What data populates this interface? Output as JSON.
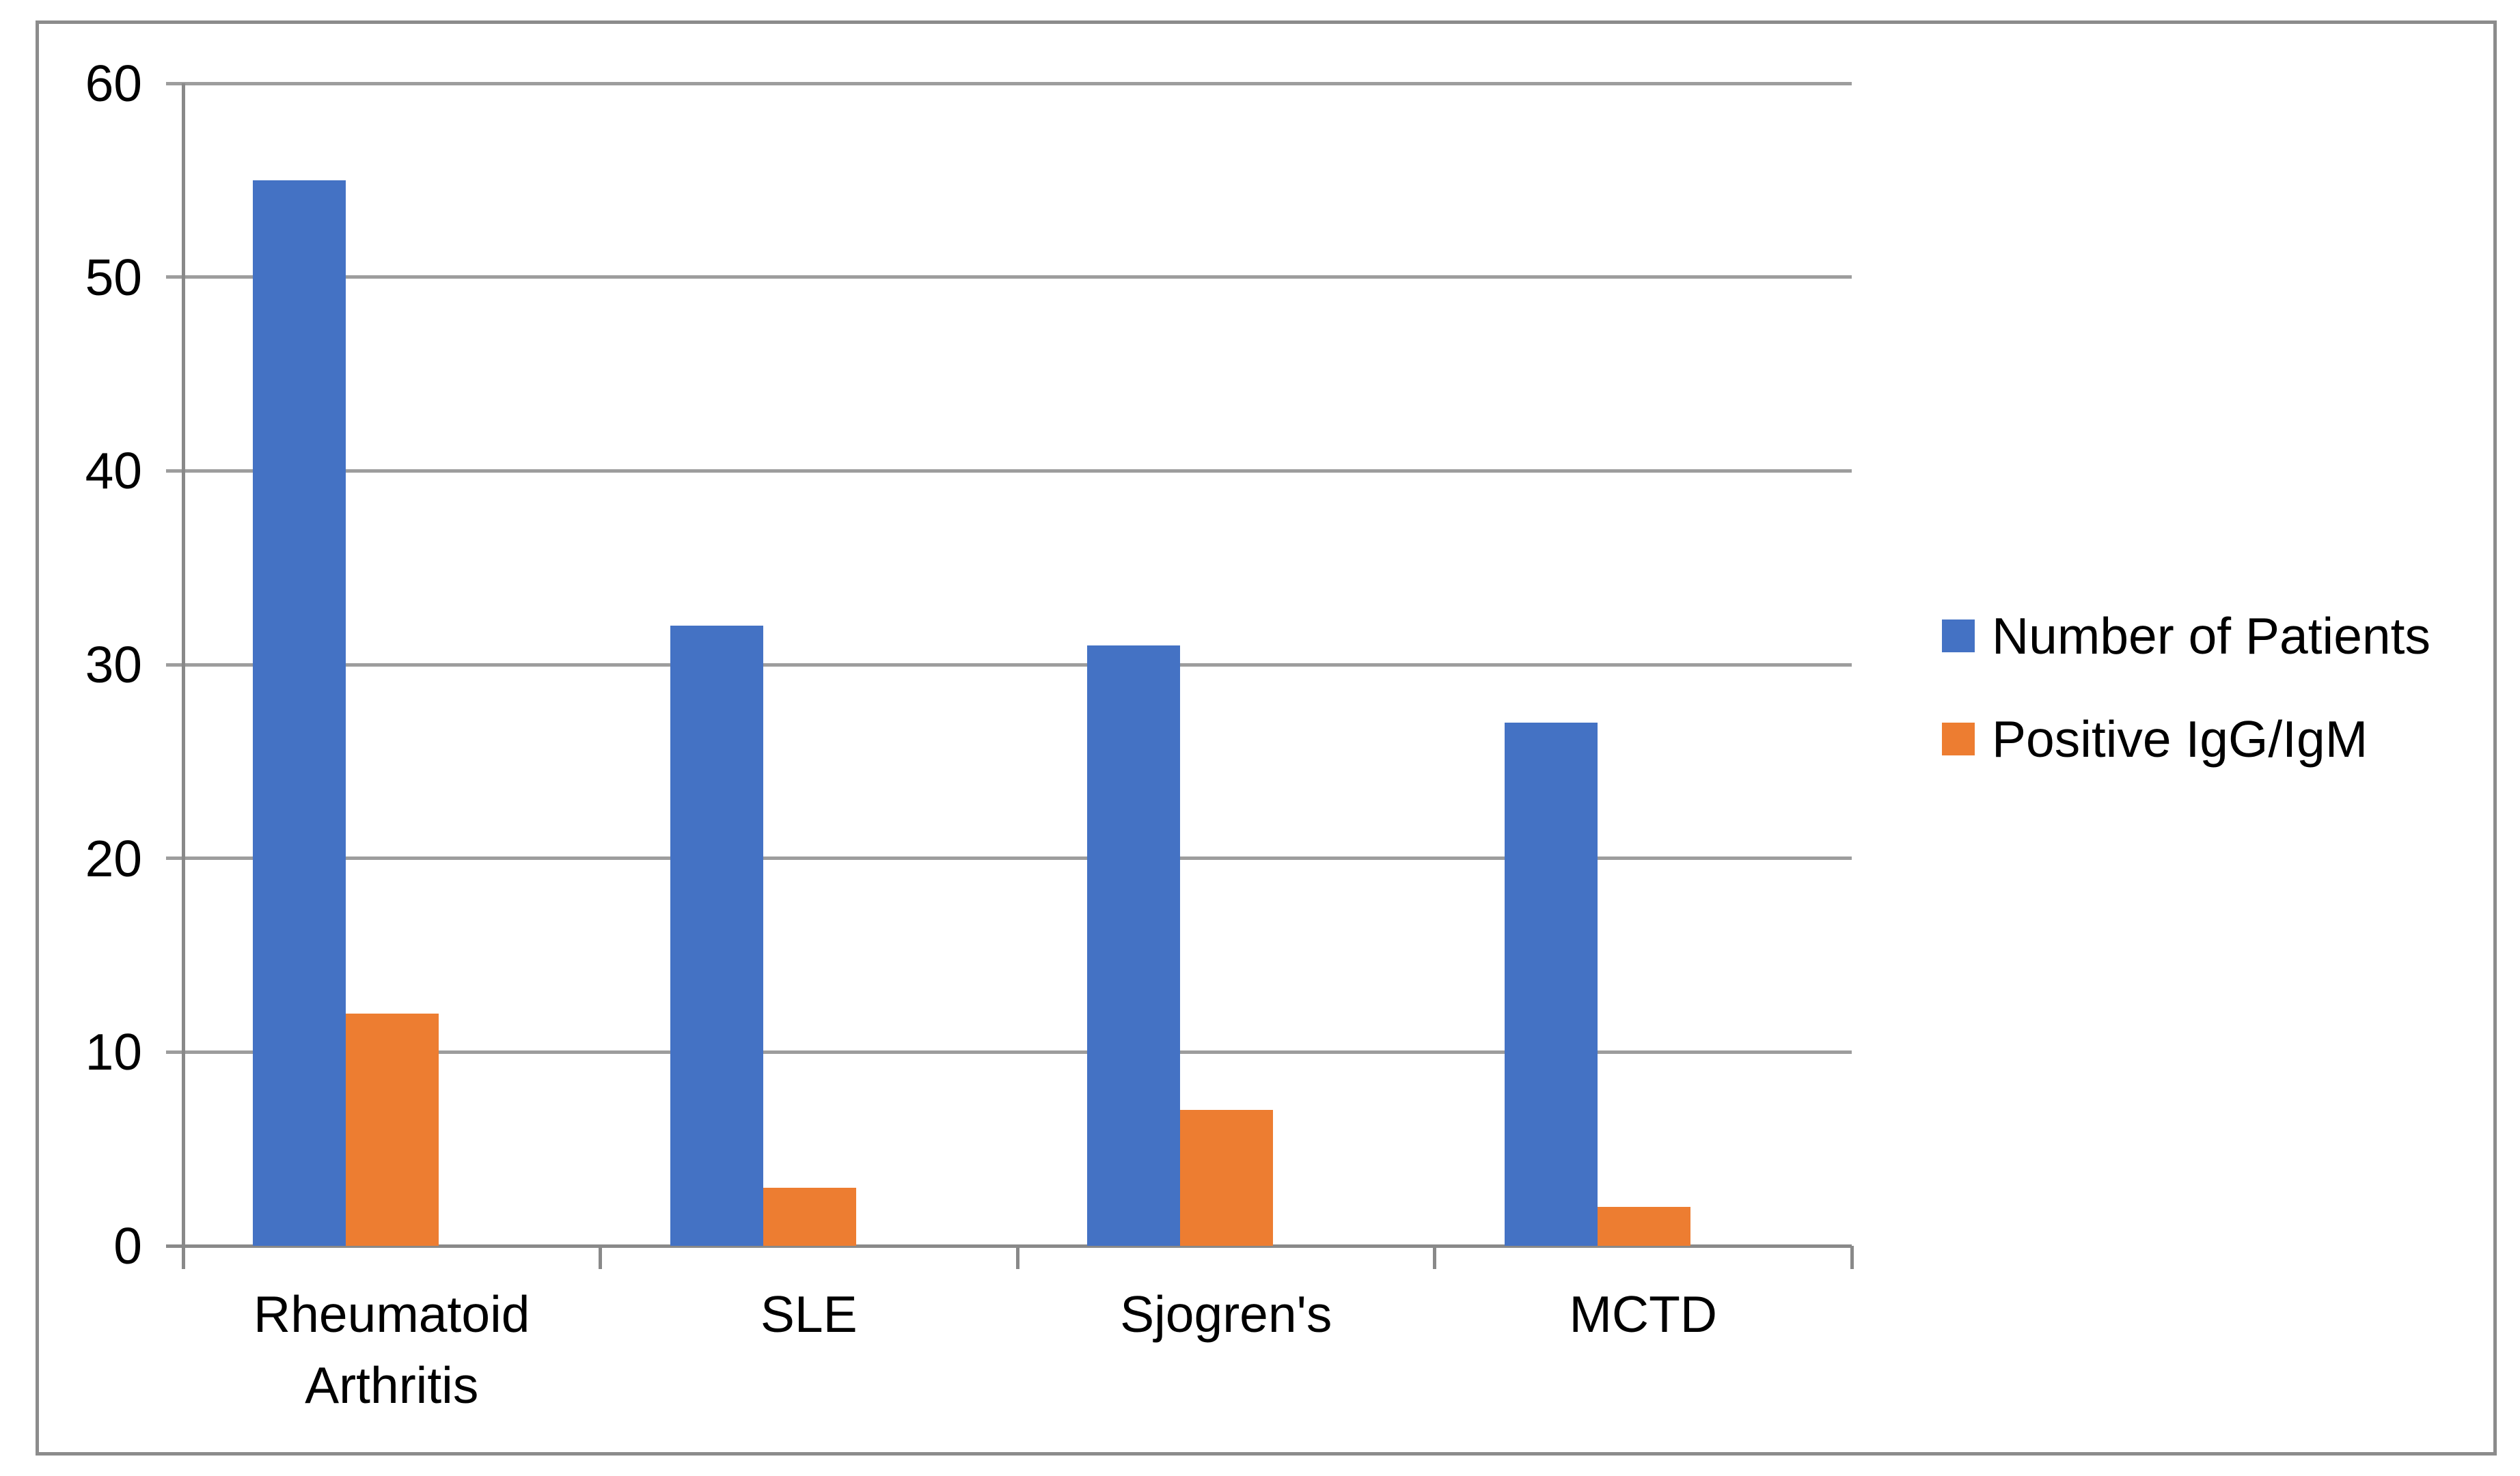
{
  "chart_data": {
    "type": "bar",
    "title": "",
    "xlabel": "",
    "ylabel": "",
    "categories": [
      "Rheumatoid Arthritis",
      "SLE",
      "Sjogren's",
      "MCTD"
    ],
    "series": [
      {
        "name": "Number of Patients",
        "color": "#4472C4",
        "values": [
          55,
          32,
          31,
          27
        ]
      },
      {
        "name": "Positive IgG/IgM",
        "color": "#ED7D31",
        "values": [
          12,
          3,
          7,
          2
        ]
      }
    ],
    "ylim": [
      0,
      60
    ],
    "yticks": [
      0,
      10,
      20,
      30,
      40,
      50,
      60
    ],
    "grid": true,
    "legend_position": "right",
    "colors": {
      "gridline": "#9D9D9D",
      "axis": "#898989",
      "frame": "#8C8C8C",
      "text": "#000000",
      "background": "#FFFFFF"
    }
  }
}
